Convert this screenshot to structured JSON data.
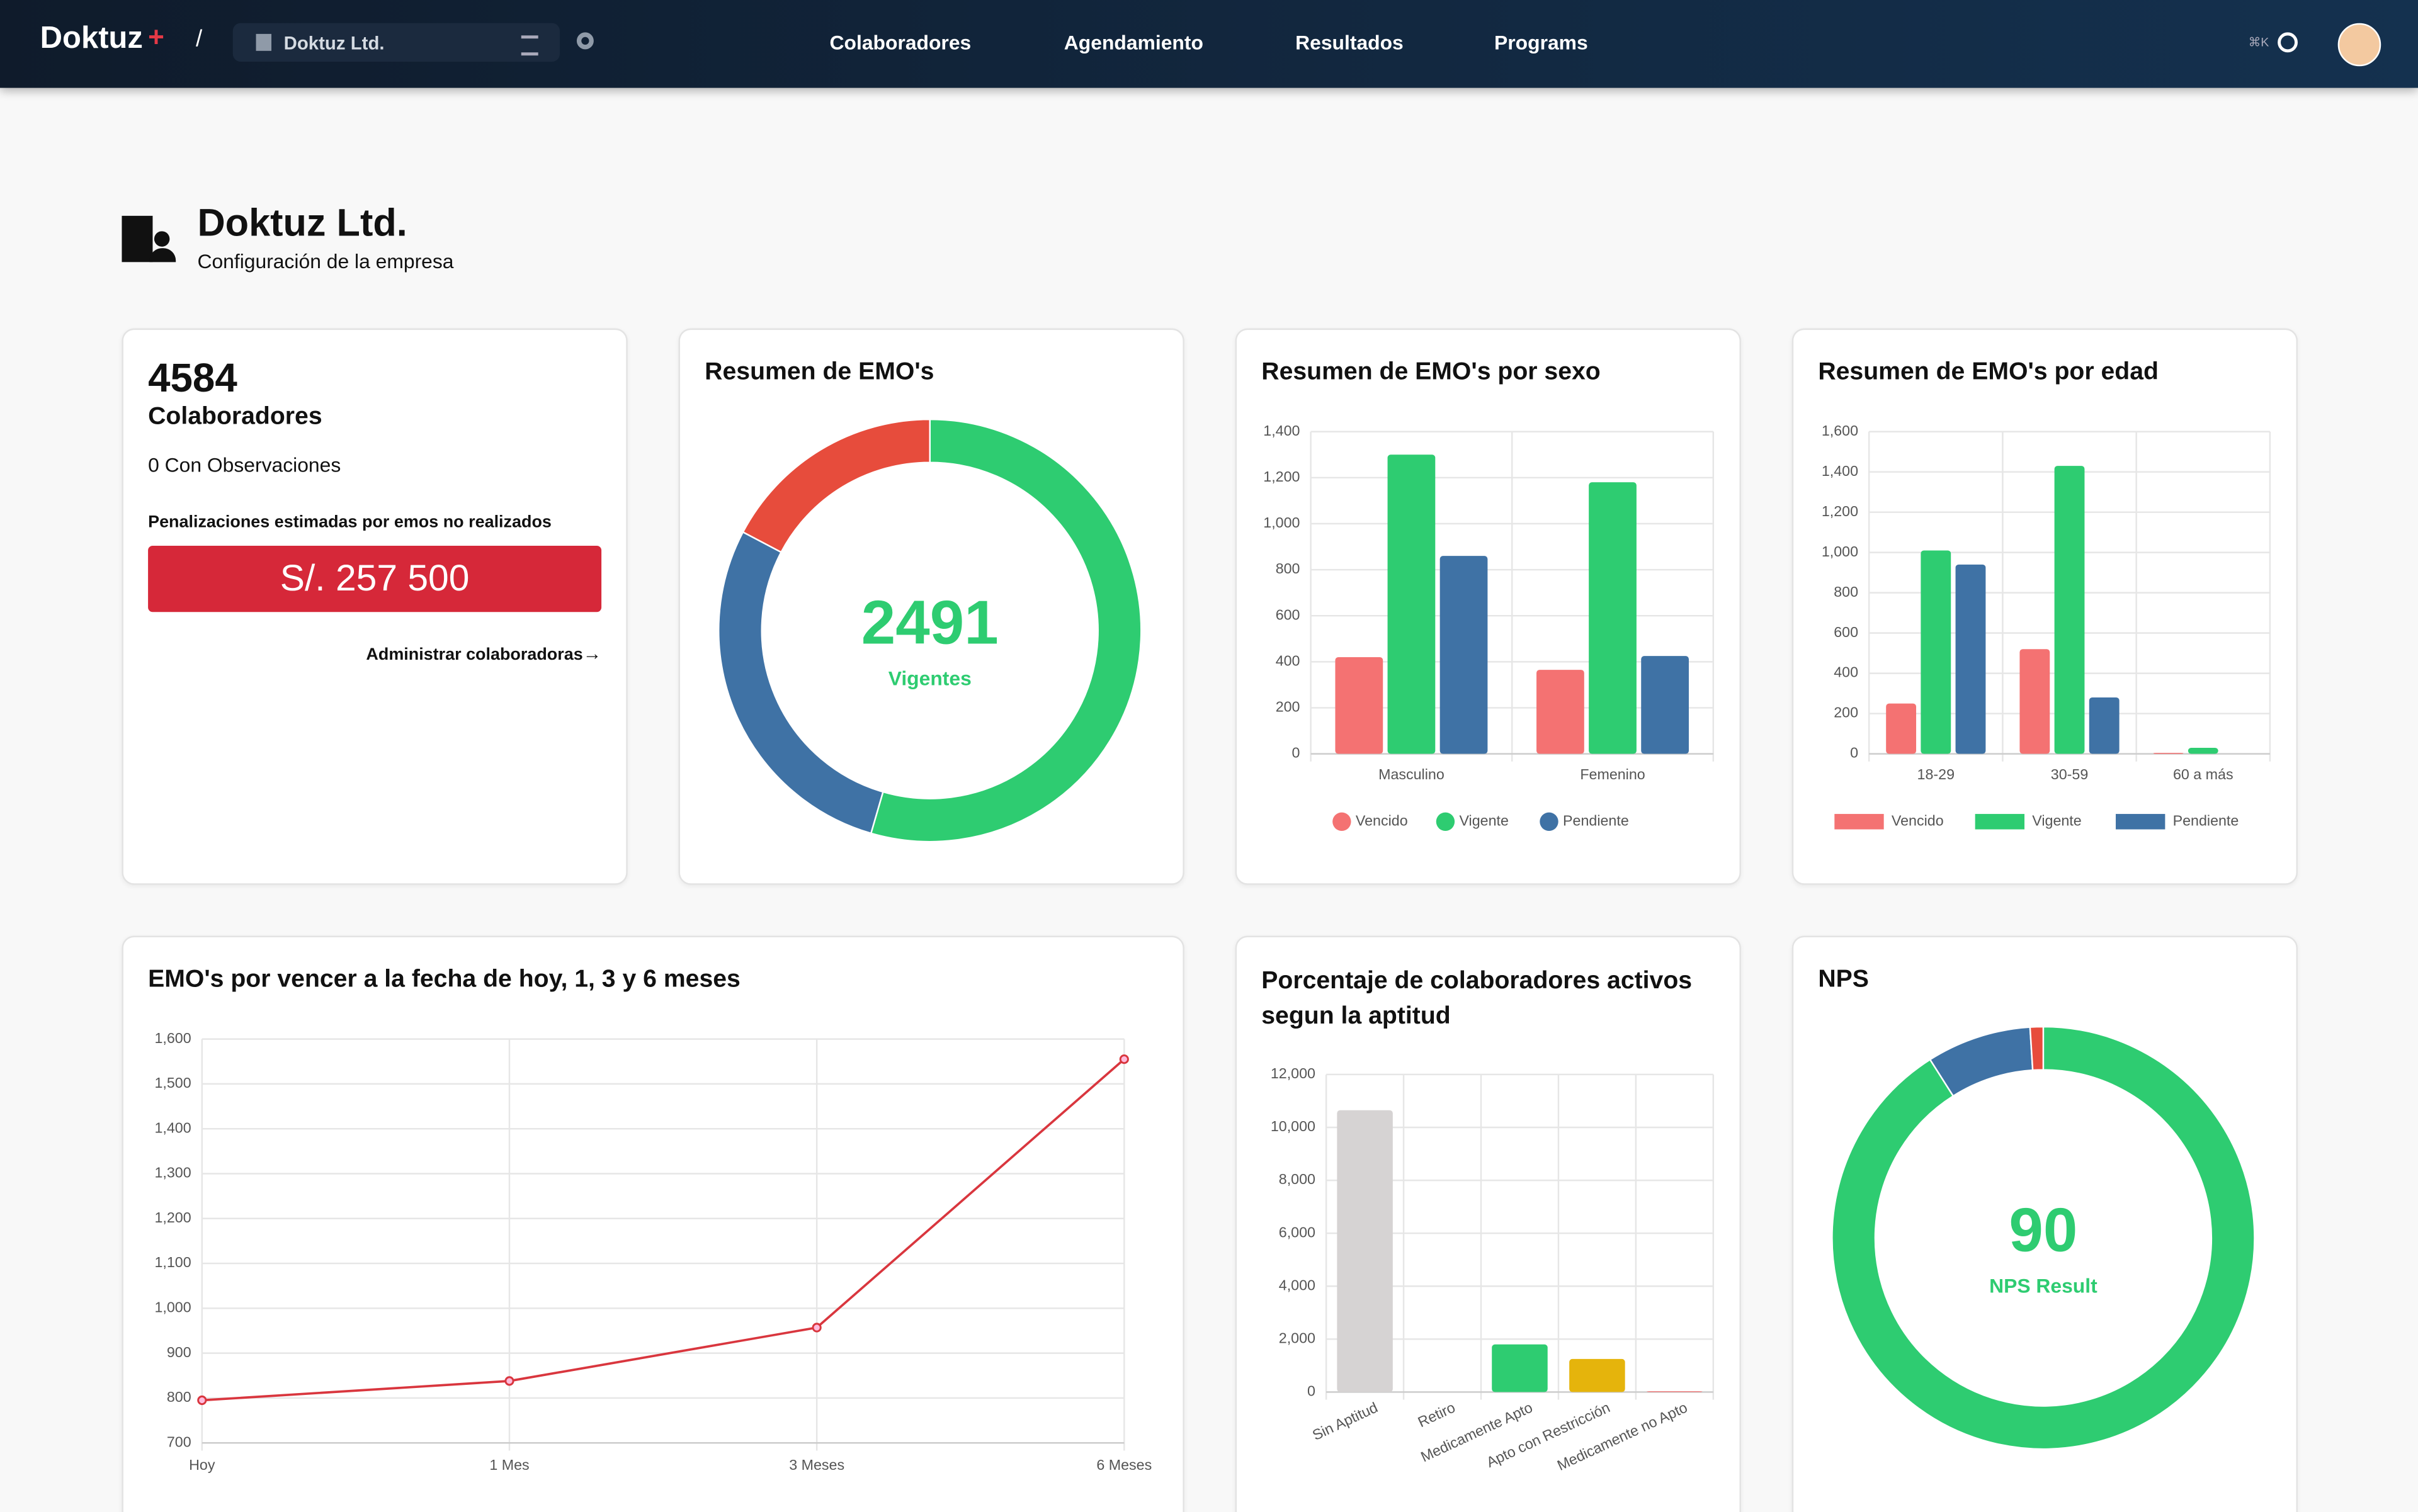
{
  "nav": {
    "logo": "Doktuz",
    "separator": "/",
    "organization": "Doktuz Ltd.",
    "menu": [
      "Colaboradores",
      "Agendamiento",
      "Resultados",
      "Programs"
    ],
    "shortcut": "⌘K"
  },
  "header": {
    "title": "Doktuz Ltd.",
    "subtitle": "Configuración de la empresa"
  },
  "summary": {
    "count": 4584,
    "label": "Colaboradores",
    "observations": "0 Con Observaciones",
    "penalty_label": "Penalizaciones estimadas por emos no realizados",
    "penalty": "S/. 257 500",
    "link": "Administrar colaboradoras"
  },
  "chart_data": [
    {
      "type": "doughnut",
      "title": "Resumen de EMO's",
      "values": [
        2491,
        1290,
        790
      ],
      "colors": [
        "#2ecc71",
        "#3f72a5",
        "#e74c3c"
      ],
      "center_label": "Vigentes"
    },
    {
      "type": "bar",
      "title": "Resumen de EMO's por sexo",
      "categories": [
        "Masculino",
        "Femenino"
      ],
      "series": [
        {
          "name": "Vencido",
          "color": "#f47272",
          "values": [
            420,
            365
          ]
        },
        {
          "name": "Vigente",
          "color": "#2ecc71",
          "values": [
            1300,
            1180
          ]
        },
        {
          "name": "Pendiente",
          "color": "#3f72a5",
          "values": [
            860,
            425
          ]
        }
      ],
      "ylim": [
        0,
        1400
      ],
      "yticks": [
        0,
        200,
        400,
        600,
        800,
        {
          "value": 1000,
          "label": "1,000"
        },
        {
          "value": 1200,
          "label": "1,200"
        },
        {
          "value": 1400,
          "label": "1,400"
        }
      ],
      "grid": true,
      "legend": "bottom",
      "legend_marker": "circle"
    },
    {
      "type": "bar",
      "title": "Resumen de EMO's por edad",
      "categories": [
        "18-29",
        "30-59",
        "60 a más"
      ],
      "series": [
        {
          "name": "Vencido",
          "color": "#f47272",
          "values": [
            250,
            520,
            5
          ]
        },
        {
          "name": "Vigente",
          "color": "#2ecc71",
          "values": [
            1010,
            1430,
            30
          ]
        },
        {
          "name": "Pendiente",
          "color": "#3f72a5",
          "values": [
            940,
            280,
            0
          ]
        }
      ],
      "ylim": [
        0,
        1600
      ],
      "yticks": [
        0,
        200,
        400,
        600,
        800,
        {
          "value": 1000,
          "label": "1,000"
        },
        {
          "value": 1200,
          "label": "1,200"
        },
        {
          "value": 1400,
          "label": "1,400"
        },
        {
          "value": 1600,
          "label": "1,600"
        }
      ],
      "grid": true,
      "legend": "bottom",
      "legend_marker": "rect"
    },
    {
      "type": "line",
      "title": "EMO's por vencer a la fecha de hoy, 1, 3 y 6 meses",
      "categories": [
        "Hoy",
        "1 Mes",
        "3 Meses",
        "6 Meses"
      ],
      "values": [
        795,
        838,
        957,
        1555
      ],
      "color": "#d9363e",
      "ylim": [
        700,
        1600
      ],
      "yticks": [
        700,
        800,
        900,
        {
          "value": 1000,
          "label": "1,000"
        },
        {
          "value": 1100,
          "label": "1,100"
        },
        {
          "value": 1200,
          "label": "1,200"
        },
        {
          "value": 1300,
          "label": "1,300"
        },
        {
          "value": 1400,
          "label": "1,400"
        },
        {
          "value": 1500,
          "label": "1,500"
        },
        {
          "value": 1600,
          "label": "1,600"
        }
      ],
      "grid": true
    },
    {
      "type": "bar",
      "title": "Porcentaje de colaboradores activos segun la aptitud",
      "categories": [
        "Sin Aptitud",
        "Retiro",
        "Medicamente Apto",
        "Apto con Restricción",
        "Medicamente no Apto"
      ],
      "values": [
        10650,
        0,
        1800,
        1250,
        30
      ],
      "colors": [
        "#d6d3d3",
        "#3f72a5",
        "#2ecc71",
        "#e5b40c",
        "#f47272"
      ],
      "ylim": [
        0,
        12000
      ],
      "yticks": [
        0,
        {
          "value": 2000,
          "label": "2,000"
        },
        {
          "value": 4000,
          "label": "4,000"
        },
        {
          "value": 6000,
          "label": "6,000"
        },
        {
          "value": 8000,
          "label": "8,000"
        },
        {
          "value": 10000,
          "label": "10,000"
        },
        {
          "value": 12000,
          "label": "12,000"
        }
      ],
      "grid": true
    },
    {
      "type": "doughnut",
      "title": "NPS",
      "values": [
        91,
        8,
        1
      ],
      "colors": [
        "#2ecc71",
        "#3f72a5",
        "#e74c3c"
      ],
      "center_value": 90,
      "center_label": "NPS Result"
    }
  ]
}
